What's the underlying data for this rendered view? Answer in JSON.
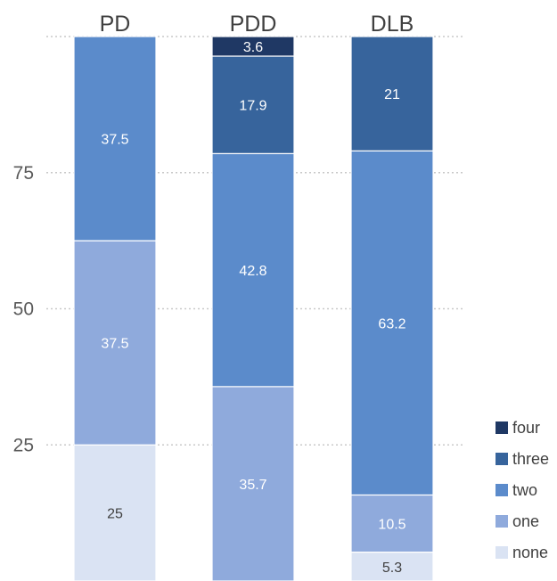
{
  "chart_data": {
    "type": "bar",
    "stacked": true,
    "categories": [
      "PD",
      "PDD",
      "DLB"
    ],
    "series": [
      {
        "name": "none",
        "color": "#dae3f3",
        "label_color": "#404040",
        "values": [
          25,
          0,
          5.3
        ]
      },
      {
        "name": "one",
        "color": "#8faadc",
        "label_color": "#ffffff",
        "values": [
          37.5,
          35.7,
          10.5
        ]
      },
      {
        "name": "two",
        "color": "#5b8bcb",
        "label_color": "#ffffff",
        "values": [
          37.5,
          42.8,
          63.2
        ]
      },
      {
        "name": "three",
        "color": "#37649c",
        "label_color": "#ffffff",
        "values": [
          0,
          17.9,
          21
        ]
      },
      {
        "name": "four",
        "color": "#1f3864",
        "label_color": "#ffffff",
        "values": [
          0,
          3.6,
          0
        ]
      }
    ],
    "ylim": [
      0,
      100
    ],
    "y_ticks": [
      25,
      50,
      75
    ],
    "grid": true,
    "legend_position": "bottom-right",
    "category_labels_position": "top",
    "xlabel": "",
    "ylabel": "",
    "title": ""
  }
}
